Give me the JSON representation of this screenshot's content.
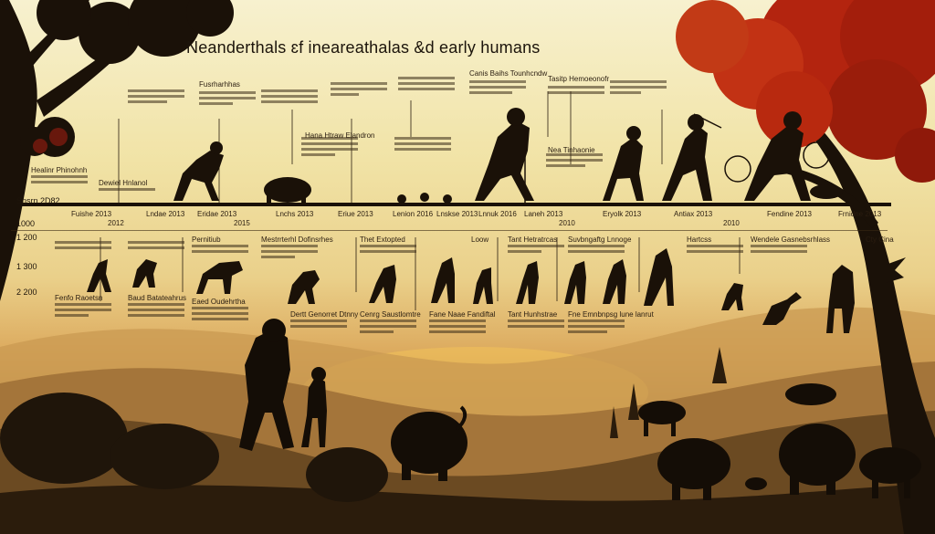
{
  "title": "Neanderthals ɛf ineareathalas &d early humans",
  "top_row": {
    "headings": [
      "Fusrharhhas",
      "Canis Baihs Tounhcndw",
      "Tasitp Hemoeonofr"
    ],
    "dates": [
      "Fuishe 2013",
      "2012",
      "Lndae 2013",
      "Eridae 2013",
      "2015",
      "Lnchs 2013",
      "Eriue 2013",
      "Lenion 2016",
      "Lnskse 2013",
      "Lnnuk 2016",
      "Laneh 2013",
      "2010",
      "Eryolk 2013",
      "Antiax 2013",
      "2010",
      "Fendine 2013",
      "Frnidne 2013"
    ]
  },
  "mid_row": {
    "headings": [
      "Pernitiub",
      "Mestrrterhl Dofinsrhes",
      "Thet Extopted",
      "Loow",
      "Tant Hetratrcas",
      "Suvbngaftg Lnnoge",
      "Hartcss",
      "Wendele Gasnebsrhlass",
      "Cty Cina"
    ],
    "notes": [
      "Healinr Phinohnh",
      "Dewiel Hnlanol",
      "Hana Htraw Elandron",
      "Nea Tinhaonie"
    ]
  },
  "bottom_row": {
    "headings": [
      "Fenfo Raoetsn",
      "Baud Batateahrus",
      "Eaed Oudehrtha",
      "Dertt Genorret Dtnny",
      "Cenrg Saustlomtre",
      "Fane Naae Fandiftal",
      "Tant Hunhstrae",
      "Fne Emnbnpsg lune lanrut"
    ]
  },
  "side_scale": [
    "Snsrn 2D82",
    "1000",
    "1 200",
    "1 300",
    "2 200"
  ],
  "palette": {
    "sky": "#f3e8b8",
    "silhouette": "#1a1108",
    "foliage_red": "#b3240f",
    "hills": "#b08346"
  }
}
